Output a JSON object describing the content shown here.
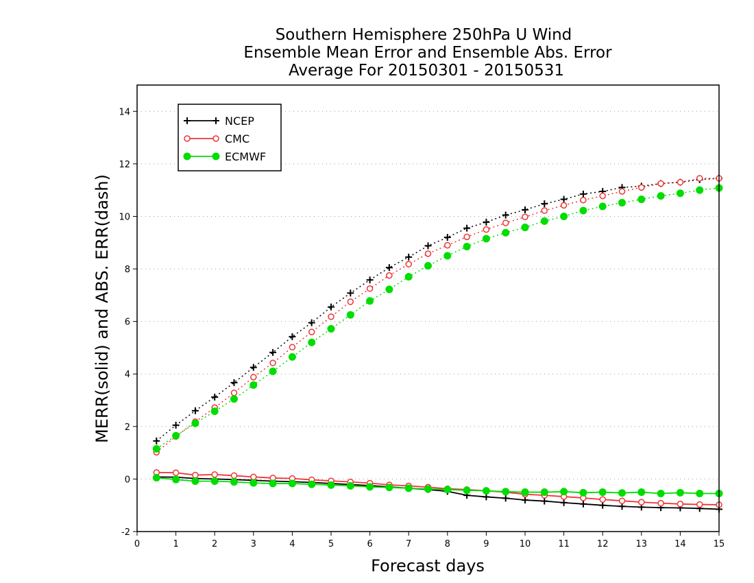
{
  "chart_data": {
    "type": "line",
    "title": [
      "Southern Hemisphere 250hPa U Wind",
      "Ensemble Mean Error and Ensemble Abs. Error",
      "Average For 20150301 - 20150531"
    ],
    "xlabel": "Forecast days",
    "ylabel": "MERR(solid) and ABS. ERR(dash)",
    "xlim": [
      0,
      15
    ],
    "ylim": [
      -2,
      15
    ],
    "xticks": [
      "0",
      "1",
      "2",
      "3",
      "4",
      "5",
      "6",
      "7",
      "8",
      "9",
      "10",
      "11",
      "12",
      "13",
      "14",
      "15"
    ],
    "yticks": [
      "-2",
      "0",
      "2",
      "4",
      "6",
      "8",
      "10",
      "12",
      "14"
    ],
    "grid": "horizontal dotted",
    "legend": "top-left",
    "x": [
      0.5,
      1,
      1.5,
      2,
      2.5,
      3,
      3.5,
      4,
      4.5,
      5,
      5.5,
      6,
      6.5,
      7,
      7.5,
      8,
      8.5,
      9,
      9.5,
      10,
      10.5,
      11,
      11.5,
      12,
      12.5,
      13,
      13.5,
      14,
      14.5,
      15
    ],
    "series": [
      {
        "name": "NCEP",
        "color": "#000000",
        "marker": "plus",
        "merr": [
          0.08,
          0.07,
          0.02,
          0.0,
          -0.02,
          -0.05,
          -0.08,
          -0.1,
          -0.13,
          -0.17,
          -0.21,
          -0.25,
          -0.3,
          -0.35,
          -0.4,
          -0.47,
          -0.62,
          -0.68,
          -0.73,
          -0.8,
          -0.84,
          -0.9,
          -0.95,
          -1.0,
          -1.04,
          -1.07,
          -1.09,
          -1.1,
          -1.12,
          -1.15
        ],
        "abs_err": [
          1.45,
          2.05,
          2.6,
          3.12,
          3.67,
          4.25,
          4.82,
          5.42,
          5.95,
          6.55,
          7.08,
          7.58,
          8.05,
          8.45,
          8.88,
          9.2,
          9.55,
          9.78,
          10.05,
          10.25,
          10.48,
          10.65,
          10.85,
          10.95,
          11.1,
          11.15,
          11.25,
          11.3,
          11.4,
          11.45
        ]
      },
      {
        "name": "CMC",
        "color": "#ee3333",
        "marker": "open-circle",
        "merr": [
          0.25,
          0.24,
          0.15,
          0.17,
          0.13,
          0.08,
          0.04,
          0.02,
          -0.03,
          -0.07,
          -0.11,
          -0.16,
          -0.22,
          -0.26,
          -0.31,
          -0.37,
          -0.4,
          -0.45,
          -0.5,
          -0.58,
          -0.62,
          -0.67,
          -0.72,
          -0.78,
          -0.83,
          -0.88,
          -0.92,
          -0.95,
          -0.97,
          -0.98
        ],
        "abs_err": [
          1.02,
          1.62,
          2.18,
          2.72,
          3.28,
          3.88,
          4.42,
          5.02,
          5.6,
          6.18,
          6.75,
          7.25,
          7.75,
          8.18,
          8.58,
          8.9,
          9.22,
          9.5,
          9.75,
          9.98,
          10.22,
          10.42,
          10.62,
          10.78,
          10.95,
          11.1,
          11.25,
          11.3,
          11.45,
          11.45
        ]
      },
      {
        "name": "ECMWF",
        "color": "#00dd00",
        "marker": "filled-circle",
        "merr": [
          0.05,
          -0.02,
          -0.08,
          -0.08,
          -0.11,
          -0.15,
          -0.17,
          -0.17,
          -0.2,
          -0.23,
          -0.26,
          -0.3,
          -0.32,
          -0.35,
          -0.38,
          -0.4,
          -0.43,
          -0.45,
          -0.48,
          -0.5,
          -0.5,
          -0.48,
          -0.52,
          -0.5,
          -0.53,
          -0.5,
          -0.55,
          -0.52,
          -0.55,
          -0.55
        ],
        "abs_err": [
          1.15,
          1.65,
          2.12,
          2.58,
          3.05,
          3.58,
          4.1,
          4.65,
          5.2,
          5.72,
          6.25,
          6.78,
          7.22,
          7.7,
          8.12,
          8.5,
          8.85,
          9.15,
          9.38,
          9.58,
          9.82,
          10.0,
          10.22,
          10.38,
          10.52,
          10.65,
          10.78,
          10.88,
          11.0,
          11.08
        ]
      }
    ]
  }
}
